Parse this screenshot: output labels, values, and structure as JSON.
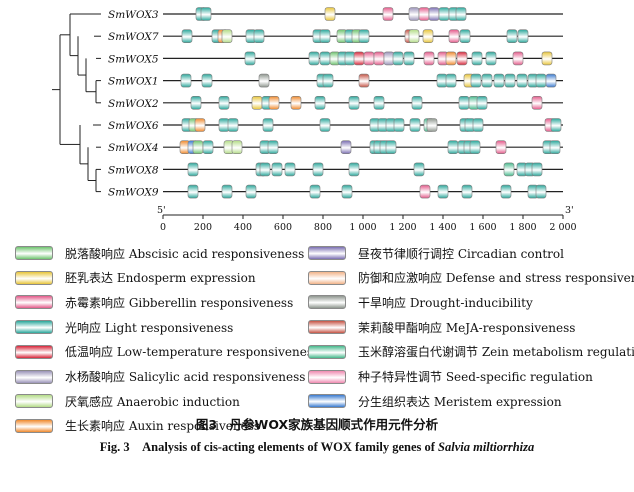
{
  "chart_data": {
    "type": "diagram",
    "x_axis": {
      "ticks": [
        0,
        200,
        400,
        600,
        800,
        1000,
        1200,
        1400,
        1600,
        1800,
        2000
      ],
      "tick_labels": [
        "0",
        "200",
        "400",
        "600",
        "800",
        "1 000",
        "1 200",
        "1 400",
        "1 600",
        "1 800",
        "2 000"
      ],
      "range": [
        0,
        2000
      ],
      "left_label": "5'",
      "right_label": "3'"
    },
    "genes": [
      {
        "name": "SmWOX3",
        "elements": [
          [
            "light",
            190
          ],
          [
            "light",
            215
          ],
          [
            "endosperm",
            835
          ],
          [
            "gibberellin",
            1125
          ],
          [
            "salicylic",
            1255
          ],
          [
            "gibberellin",
            1305
          ],
          [
            "circadian",
            1355
          ],
          [
            "light",
            1405
          ],
          [
            "light",
            1455
          ],
          [
            "light",
            1490
          ]
        ]
      },
      {
        "name": "SmWOX7",
        "elements": [
          [
            "light",
            120
          ],
          [
            "light",
            270
          ],
          [
            "auxin",
            300
          ],
          [
            "anaerobic",
            320
          ],
          [
            "light",
            440
          ],
          [
            "light",
            480
          ],
          [
            "light",
            775
          ],
          [
            "light",
            810
          ],
          [
            "abscisic",
            895
          ],
          [
            "light",
            935
          ],
          [
            "abscisic",
            970
          ],
          [
            "light",
            1005
          ],
          [
            "meja",
            1235
          ],
          [
            "anaerobic",
            1255
          ],
          [
            "endosperm",
            1325
          ],
          [
            "gibberellin",
            1455
          ],
          [
            "light",
            1510
          ],
          [
            "light",
            1745
          ],
          [
            "light",
            1800
          ]
        ]
      },
      {
        "name": "SmWOX5",
        "elements": [
          [
            "light",
            435
          ],
          [
            "light",
            755
          ],
          [
            "light",
            810
          ],
          [
            "abscisic",
            860
          ],
          [
            "light",
            900
          ],
          [
            "light",
            935
          ],
          [
            "lowtemp",
            980
          ],
          [
            "gibberellin",
            1030
          ],
          [
            "gibberellin",
            1080
          ],
          [
            "salicylic",
            1130
          ],
          [
            "light",
            1175
          ],
          [
            "light",
            1230
          ],
          [
            "gibberellin",
            1330
          ],
          [
            "gibberellin",
            1400
          ],
          [
            "auxin",
            1440
          ],
          [
            "lowtemp",
            1495
          ],
          [
            "light",
            1570
          ],
          [
            "light",
            1640
          ],
          [
            "gibberellin",
            1775
          ],
          [
            "endosperm",
            1920
          ]
        ]
      },
      {
        "name": "SmWOX1",
        "elements": [
          [
            "light",
            115
          ],
          [
            "light",
            220
          ],
          [
            "drought",
            505
          ],
          [
            "light",
            795
          ],
          [
            "light",
            825
          ],
          [
            "meja",
            1005
          ],
          [
            "light",
            1395
          ],
          [
            "light",
            1440
          ],
          [
            "endosperm",
            1530
          ],
          [
            "light",
            1565
          ],
          [
            "light",
            1620
          ],
          [
            "light",
            1680
          ],
          [
            "light",
            1735
          ],
          [
            "light",
            1795
          ],
          [
            "light",
            1850
          ],
          [
            "light",
            1890
          ],
          [
            "meristem",
            1940
          ]
        ]
      },
      {
        "name": "SmWOX2",
        "elements": [
          [
            "light",
            165
          ],
          [
            "light",
            305
          ],
          [
            "endosperm",
            470
          ],
          [
            "light",
            520
          ],
          [
            "auxin",
            555
          ],
          [
            "auxin",
            665
          ],
          [
            "light",
            785
          ],
          [
            "light",
            955
          ],
          [
            "light",
            1080
          ],
          [
            "light",
            1270
          ],
          [
            "light",
            1505
          ],
          [
            "zein",
            1555
          ],
          [
            "light",
            1595
          ],
          [
            "gibberellin",
            1870
          ]
        ]
      },
      {
        "name": "SmWOX6",
        "elements": [
          [
            "light",
            120
          ],
          [
            "abscisic",
            155
          ],
          [
            "auxin",
            185
          ],
          [
            "light",
            305
          ],
          [
            "light",
            350
          ],
          [
            "light",
            525
          ],
          [
            "light",
            810
          ],
          [
            "light",
            1060
          ],
          [
            "light",
            1100
          ],
          [
            "light",
            1140
          ],
          [
            "light",
            1180
          ],
          [
            "light",
            1260
          ],
          [
            "zein",
            1330
          ],
          [
            "drought",
            1345
          ],
          [
            "light",
            1510
          ],
          [
            "light",
            1535
          ],
          [
            "light",
            1575
          ],
          [
            "gibberellin",
            1935
          ],
          [
            "light",
            1965
          ]
        ]
      },
      {
        "name": "SmWOX4",
        "elements": [
          [
            "auxin",
            110
          ],
          [
            "meristem",
            150
          ],
          [
            "abscisic",
            175
          ],
          [
            "light",
            225
          ],
          [
            "anaerobic",
            330
          ],
          [
            "anaerobic",
            370
          ],
          [
            "light",
            510
          ],
          [
            "light",
            550
          ],
          [
            "circadian",
            915
          ],
          [
            "light",
            1060
          ],
          [
            "light",
            1080
          ],
          [
            "light",
            1110
          ],
          [
            "light",
            1140
          ],
          [
            "light",
            1450
          ],
          [
            "light",
            1500
          ],
          [
            "light",
            1530
          ],
          [
            "light",
            1560
          ],
          [
            "gibberellin",
            1690
          ],
          [
            "light",
            1925
          ],
          [
            "light",
            1960
          ]
        ]
      },
      {
        "name": "SmWOX8",
        "elements": [
          [
            "light",
            150
          ],
          [
            "light",
            490
          ],
          [
            "light",
            510
          ],
          [
            "light",
            570
          ],
          [
            "light",
            635
          ],
          [
            "light",
            775
          ],
          [
            "light",
            955
          ],
          [
            "light",
            1280
          ],
          [
            "zein",
            1730
          ],
          [
            "light",
            1795
          ],
          [
            "light",
            1835
          ],
          [
            "light",
            1870
          ]
        ]
      },
      {
        "name": "SmWOX9",
        "elements": [
          [
            "light",
            150
          ],
          [
            "light",
            320
          ],
          [
            "light",
            440
          ],
          [
            "light",
            760
          ],
          [
            "light",
            920
          ],
          [
            "gibberellin",
            1310
          ],
          [
            "light",
            1400
          ],
          [
            "light",
            1520
          ],
          [
            "light",
            1715
          ],
          [
            "light",
            1850
          ],
          [
            "light",
            1890
          ]
        ]
      }
    ],
    "tree": {
      "root": [
        "SmWOX3",
        "SmWOX7",
        "SmWOX5",
        "SmWOX1",
        "SmWOX2",
        "SmWOX6",
        "SmWOX4",
        "SmWOX8",
        "SmWOX9"
      ]
    }
  },
  "legend": [
    {
      "key": "abscisic",
      "label": "脱落酸响应 Abscisic acid responsiveness",
      "color": "#6fc46f"
    },
    {
      "key": "endosperm",
      "label": "胚乳表达 Endosperm expression",
      "color": "#e8c53a"
    },
    {
      "key": "gibberellin",
      "label": "赤霉素响应 Gibberellin responsiveness",
      "color": "#e45a8a"
    },
    {
      "key": "light",
      "label": "光响应 Light responsiveness",
      "color": "#2aa79b"
    },
    {
      "key": "lowtemp",
      "label": "低温响应 Low-temperature responsiveness",
      "color": "#d8263a"
    },
    {
      "key": "salicylic",
      "label": "水杨酸响应 Salicylic acid responsiveness",
      "color": "#9a93b8"
    },
    {
      "key": "anaerobic",
      "label": "厌氧感应 Anaerobic induction",
      "color": "#b4dc88"
    },
    {
      "key": "auxin",
      "label": "生长素响应 Auxin responsiveness",
      "color": "#f08a2e"
    },
    {
      "key": "circadian",
      "label": "昼夜节律顺行调控 Circadian control",
      "color": "#7b6fb2"
    },
    {
      "key": "defense",
      "label": "防御和应激响应 Defense and stress responsiveness",
      "color": "#f2b48a"
    },
    {
      "key": "drought",
      "label": "干旱响应 Drought-inducibility",
      "color": "#8f978f"
    },
    {
      "key": "meja",
      "label": "茉莉酸甲酯响应 MeJA-responsiveness",
      "color": "#c65445"
    },
    {
      "key": "zein",
      "label": "玉米醇溶蛋白代谢调节 Zein metabolism regulation",
      "color": "#46b98c"
    },
    {
      "key": "seed",
      "label": "种子特异性调节 Seed-specific regulation",
      "color": "#ef8ab0"
    },
    {
      "key": "meristem",
      "label": "分生组织表达 Meristem expression",
      "color": "#3a7bd0"
    }
  ],
  "caption": {
    "cn": "图3　丹参WOX家族基因顺式作用元件分析",
    "en_prefix": "Fig. 3　Analysis of cis-acting elements of WOX family genes of ",
    "en_species": "Salvia miltiorrhiza"
  }
}
